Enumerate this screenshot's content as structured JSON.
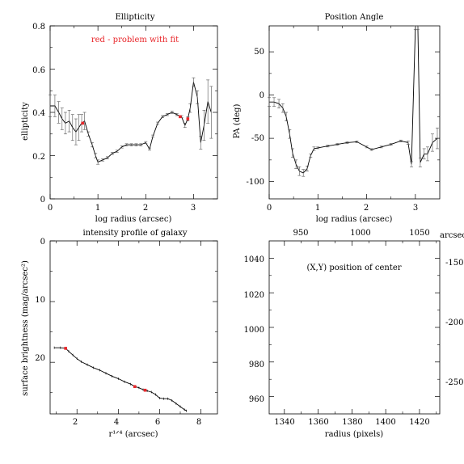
{
  "chart_data": [
    {
      "type": "line",
      "title": "Ellipticity",
      "xlabel": "log radius (arcsec)",
      "ylabel": "ellipticity",
      "xlim": [
        0,
        3.5
      ],
      "ylim": [
        0,
        0.8
      ],
      "xticks": [
        "0",
        "1",
        "2",
        "3"
      ],
      "yticks": [
        "0",
        "0.2",
        "0.4",
        "0.6",
        "0.8"
      ],
      "annotation": "red - problem with fit",
      "series": [
        {
          "x": [
            0.0,
            0.1,
            0.18,
            0.25,
            0.32,
            0.4,
            0.47,
            0.54,
            0.6,
            0.66,
            0.72,
            0.8,
            0.88,
            0.95,
            1.0,
            1.1,
            1.2,
            1.3,
            1.4,
            1.5,
            1.6,
            1.7,
            1.8,
            1.9,
            2.0,
            2.08,
            2.15,
            2.25,
            2.35,
            2.45,
            2.55,
            2.65,
            2.75,
            2.82,
            2.88,
            2.93,
            3.0,
            3.08,
            3.15,
            3.22,
            3.3,
            3.37
          ],
          "y": [
            0.43,
            0.43,
            0.4,
            0.37,
            0.35,
            0.36,
            0.33,
            0.31,
            0.33,
            0.35,
            0.36,
            0.3,
            0.25,
            0.2,
            0.17,
            0.18,
            0.19,
            0.21,
            0.22,
            0.24,
            0.25,
            0.25,
            0.25,
            0.25,
            0.26,
            0.23,
            0.29,
            0.35,
            0.38,
            0.39,
            0.4,
            0.39,
            0.38,
            0.34,
            0.37,
            0.42,
            0.54,
            0.47,
            0.26,
            0.34,
            0.45,
            0.4
          ],
          "err": [
            0.05,
            0.05,
            0.05,
            0.05,
            0.05,
            0.05,
            0.06,
            0.06,
            0.06,
            0.04,
            0.04,
            0.01,
            0.01,
            0.01,
            0.01,
            0.005,
            0.005,
            0.005,
            0.005,
            0.005,
            0.005,
            0.005,
            0.005,
            0.005,
            0.005,
            0.005,
            0.005,
            0.005,
            0.005,
            0.005,
            0.005,
            0.005,
            0.005,
            0.01,
            0.01,
            0.02,
            0.02,
            0.03,
            0.03,
            0.07,
            0.1,
            0.12
          ]
        }
      ],
      "flagged_points": [
        {
          "x": 0.68,
          "y": 0.35
        },
        {
          "x": 2.72,
          "y": 0.38
        },
        {
          "x": 2.88,
          "y": 0.37
        }
      ],
      "flag_color": "#e8262a"
    },
    {
      "type": "line",
      "title": "Position Angle",
      "xlabel": "log radius (arcsec)",
      "ylabel": "PA (deg)",
      "xlim": [
        0,
        3.5
      ],
      "ylim": [
        -120,
        80
      ],
      "xticks": [
        "0",
        "1",
        "2",
        "3"
      ],
      "yticks": [
        "50",
        "0",
        "-50",
        "-100"
      ],
      "series": [
        {
          "x": [
            0.0,
            0.1,
            0.2,
            0.28,
            0.35,
            0.42,
            0.48,
            0.55,
            0.62,
            0.7,
            0.78,
            0.85,
            0.92,
            1.0,
            1.2,
            1.4,
            1.6,
            1.8,
            2.0,
            2.1,
            2.3,
            2.5,
            2.7,
            2.85,
            2.92,
            3.0,
            3.05,
            3.1,
            3.18,
            3.25,
            3.35,
            3.45
          ],
          "y": [
            -8,
            -8,
            -10,
            -15,
            -25,
            -45,
            -67,
            -80,
            -88,
            -90,
            -85,
            -70,
            -62,
            -61,
            -59,
            -57,
            -55,
            -54,
            -60,
            -63,
            -60,
            -57,
            -53,
            -55,
            -80,
            80,
            80,
            -78,
            -68,
            -68,
            -55,
            -50
          ],
          "err": [
            5,
            5,
            5,
            5,
            5,
            5,
            5,
            5,
            5,
            4,
            3,
            2,
            2,
            1,
            1,
            1,
            1,
            1,
            1,
            1,
            1,
            1,
            1,
            2,
            3,
            4,
            4,
            5,
            6,
            8,
            10,
            12
          ]
        }
      ]
    },
    {
      "type": "line",
      "title": "intensity profile of galaxy",
      "xlabel": "r¹ᐟ⁴ (arcsec)",
      "ylabel": "surface brightness (mag/arcsec²)",
      "xlim": [
        0.7,
        8.8
      ],
      "ylim": [
        28.5,
        0
      ],
      "xticks": [
        "2",
        "4",
        "6",
        "8"
      ],
      "yticks": [
        "0",
        "10",
        "20"
      ],
      "series": [
        {
          "x": [
            0.9,
            1.2,
            1.45,
            1.6,
            1.8,
            2.0,
            2.2,
            2.5,
            2.8,
            3.1,
            3.4,
            3.7,
            4.0,
            4.3,
            4.6,
            4.8,
            5.0,
            5.2,
            5.4,
            5.6,
            5.8,
            6.0,
            6.2,
            6.4,
            6.6,
            6.8,
            7.0,
            7.2,
            7.3
          ],
          "y": [
            17.6,
            17.6,
            17.7,
            18.2,
            18.8,
            19.4,
            19.9,
            20.4,
            20.9,
            21.3,
            21.8,
            22.3,
            22.7,
            23.2,
            23.6,
            24.0,
            24.2,
            24.5,
            24.7,
            24.9,
            25.3,
            25.9,
            26.0,
            26.0,
            26.3,
            26.8,
            27.3,
            27.8,
            28.0
          ]
        }
      ],
      "flagged_points": [
        {
          "x": 1.45,
          "y": 17.7
        },
        {
          "x": 4.8,
          "y": 24.0
        },
        {
          "x": 5.3,
          "y": 24.6
        }
      ],
      "flag_color": "#e8262a"
    },
    {
      "type": "scatter",
      "title": "",
      "annotation": "(X,Y) position of center",
      "xlabel": "radius (pixels)",
      "ylabel": "",
      "toplabel": "arcsec",
      "xlim": [
        1331,
        1432
      ],
      "ylim": [
        950,
        1050
      ],
      "xticks": [
        "1340",
        "1360",
        "1380",
        "1400",
        "1420"
      ],
      "yticks": [
        "960",
        "980",
        "1000",
        "1020",
        "1040"
      ],
      "top_xticks": [
        "950",
        "1000",
        "1050"
      ],
      "right_yticks": [
        "-150",
        "-200",
        "-250"
      ],
      "points": []
    }
  ]
}
